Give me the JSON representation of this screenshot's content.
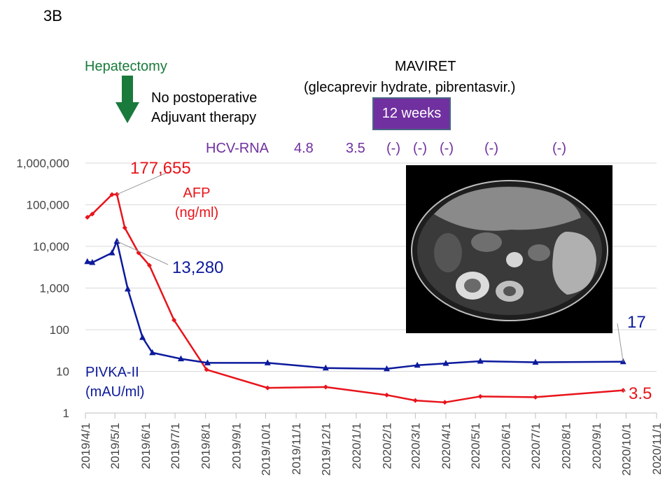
{
  "figure_label": "3B",
  "annotations": {
    "hepatectomy": "Hepatectomy",
    "no_adjuvant_line1": "No postoperative",
    "no_adjuvant_line2": "Adjuvant therapy",
    "drug_name": "MAVIRET",
    "drug_components": "(glecaprevir hydrate, pibrentasvir.)",
    "duration": "12 weeks",
    "hcv_rna_label": "HCV-RNA",
    "hcv_rna_values": [
      "4.8",
      "3.5",
      "(-)",
      "(-)",
      "(-)",
      "(-)",
      "(-)"
    ]
  },
  "colors": {
    "afp": "#e8141b",
    "pivka": "#0c1a9c",
    "hepatectomy_arrow": "#1a7a3c",
    "treatment_box": "#7030a0",
    "hcv_text": "#7030a0",
    "grid": "#d9d9d9"
  },
  "inset_image": "abdominal-ct-scan",
  "chart_data": {
    "type": "line",
    "y_scale": "log",
    "ylim": [
      1,
      1000000
    ],
    "y_ticks": [
      "1",
      "10",
      "100",
      "1,000",
      "10,000",
      "100,000",
      "1,000,000"
    ],
    "x_range": [
      "2019-04-01",
      "2020-11-01"
    ],
    "x_ticks": [
      "2019/4/1",
      "2019/5/1",
      "2019/6/1",
      "2019/7/1",
      "2019/8/1",
      "2019/9/1",
      "2019/10/1",
      "2019/11/1",
      "2019/12/1",
      "2020/1/1",
      "2020/2/1",
      "2020/3/1",
      "2020/4/1",
      "2020/5/1",
      "2020/6/1",
      "2020/7/1",
      "2020/8/1",
      "2020/9/1",
      "2020/10/1",
      "2020/11/1"
    ],
    "grid": "horizontal",
    "series": [
      {
        "name_line1": "AFP",
        "name_line2": "(ng/ml)",
        "marker": "diamond",
        "x": [
          "2019-04-03",
          "2019-04-08",
          "2019-04-28",
          "2019-05-03",
          "2019-05-11",
          "2019-05-25",
          "2019-06-05",
          "2019-06-30",
          "2019-08-02",
          "2019-10-03",
          "2019-12-01",
          "2020-02-01",
          "2020-03-01",
          "2020-03-31",
          "2020-05-06",
          "2020-07-01",
          "2020-09-28"
        ],
        "values": [
          50000,
          60000,
          175000,
          177655,
          28000,
          7000,
          3500,
          170,
          11,
          4,
          4.2,
          2.7,
          2,
          1.8,
          2.5,
          2.4,
          3.5
        ]
      },
      {
        "name_line1": "PIVKA-II",
        "name_line2": "(mAU/ml)",
        "marker": "triangle",
        "x": [
          "2019-04-03",
          "2019-04-08",
          "2019-04-28",
          "2019-05-03",
          "2019-05-14",
          "2019-05-29",
          "2019-06-08",
          "2019-07-07",
          "2019-08-03",
          "2019-10-03",
          "2019-12-01",
          "2020-02-01",
          "2020-03-03",
          "2020-04-01",
          "2020-05-06",
          "2020-07-01",
          "2020-09-28"
        ],
        "values": [
          4300,
          4100,
          7000,
          13280,
          950,
          65,
          28,
          20,
          16,
          16,
          12,
          11.5,
          14,
          15.5,
          17.5,
          16.5,
          17
        ]
      }
    ],
    "callouts": [
      {
        "series": 0,
        "point": 3,
        "text": "177,655"
      },
      {
        "series": 1,
        "point": 3,
        "text": "13,280"
      },
      {
        "series": 1,
        "point": 16,
        "text": "17"
      },
      {
        "series": 0,
        "point": 16,
        "text": "3.5"
      }
    ]
  }
}
